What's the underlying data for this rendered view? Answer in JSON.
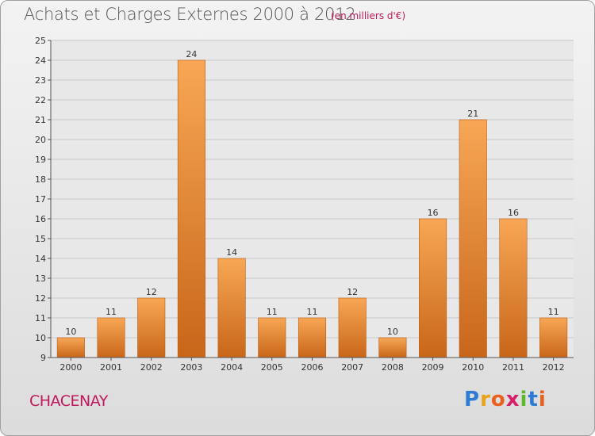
{
  "header": {
    "title": "Achats et Charges Externes 2000 à 2012",
    "unit": "(en milliers d'€)"
  },
  "commune": "CHACENAY",
  "logo": {
    "letters": [
      "P",
      "r",
      "o",
      "x",
      "i",
      "t",
      "i"
    ],
    "colors": [
      "#2e7bd6",
      "#e8a317",
      "#e8601c",
      "#d81f6a",
      "#5cb82e",
      "#2e7bd6",
      "#e8601c"
    ]
  },
  "colors": {
    "bar_top": "#f7a755",
    "bar_bottom": "#c8661a",
    "bar_border": "#b85c10",
    "grid": "#c8c8c8",
    "plot_background": "#e8e8e8"
  },
  "chart_data": {
    "type": "bar",
    "categories": [
      "2000",
      "2001",
      "2002",
      "2003",
      "2004",
      "2005",
      "2006",
      "2007",
      "2008",
      "2009",
      "2010",
      "2011",
      "2012"
    ],
    "values": [
      10,
      11,
      12,
      24,
      14,
      11,
      11,
      12,
      10,
      16,
      21,
      16,
      11
    ],
    "title": "Achats et Charges Externes 2000 à 2012",
    "xlabel": "",
    "ylabel": "",
    "ylim": [
      9,
      25
    ],
    "yticks": [
      9,
      10,
      11,
      12,
      13,
      14,
      15,
      16,
      17,
      18,
      19,
      20,
      21,
      22,
      23,
      24,
      25
    ],
    "grid": true,
    "data_labels": true
  }
}
